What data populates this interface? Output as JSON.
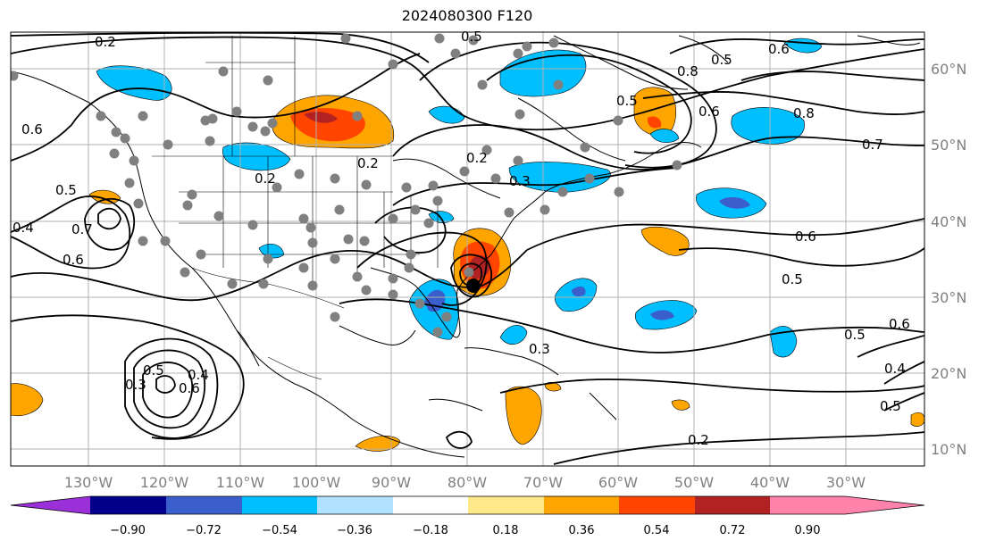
{
  "title": "2024080300 F120",
  "map": {
    "lon_labels": [
      "130°W",
      "120°W",
      "110°W",
      "100°W",
      "90°W",
      "80°W",
      "70°W",
      "60°W",
      "50°W",
      "40°W",
      "30°W"
    ],
    "lat_labels": [
      "60°N",
      "50°N",
      "40°N",
      "30°N",
      "20°N",
      "10°N"
    ],
    "contour_labels": [
      "0.2",
      "0.5",
      "0.6",
      "0.4",
      "0.7",
      "0.6",
      "0.5",
      "0.3",
      "0.5",
      "0.6",
      "0.4",
      "0.6",
      "0.8",
      "0.7",
      "0.6",
      "0.5",
      "0.5",
      "0.6",
      "0.8",
      "0.2",
      "0.2",
      "0.3",
      "0.2",
      "0.5",
      "0.5",
      "0.4",
      "0.5",
      "0.6",
      "0.2",
      "0.3"
    ],
    "colors": {
      "land_outline": "#000000",
      "grid": "#b0b0b0",
      "contour": "#000000",
      "marker": "#808080",
      "storm_marker": "#000000"
    }
  },
  "colorbar": {
    "ticks": [
      "−0.90",
      "−0.72",
      "−0.54",
      "−0.36",
      "−0.18",
      "0.18",
      "0.36",
      "0.54",
      "0.72",
      "0.90"
    ],
    "colors": [
      "#9b30d9",
      "#00008b",
      "#3a5fcd",
      "#00bfff",
      "#b0e2ff",
      "#ffffff",
      "#ffe88a",
      "#ffa500",
      "#ff4500",
      "#b22222",
      "#ff82ab"
    ]
  }
}
